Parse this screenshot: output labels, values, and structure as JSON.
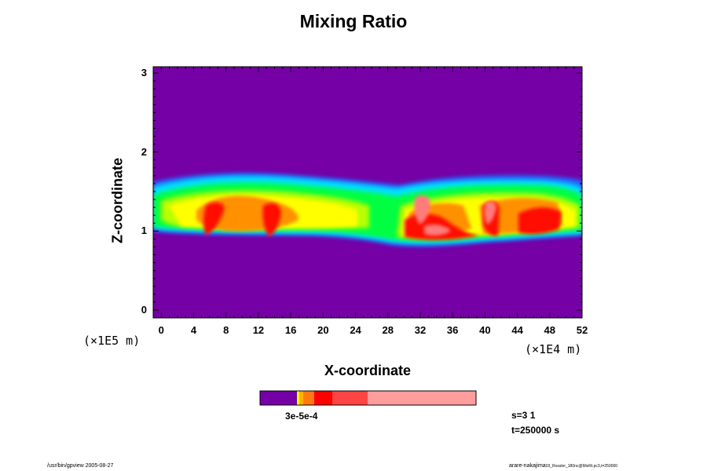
{
  "chart_data": {
    "type": "heatmap",
    "title": "Mixing Ratio",
    "xlabel": "X-coordinate",
    "ylabel": "Z-coordinate",
    "x_unit": "(×1E4 m)",
    "y_unit": "(×1E5 m)",
    "xlim": [
      -1,
      52
    ],
    "ylim": [
      -0.1,
      3.08
    ],
    "x_ticks": [
      "0",
      "4",
      "8",
      "12",
      "16",
      "20",
      "24",
      "28",
      "32",
      "36",
      "40",
      "44",
      "48",
      "52"
    ],
    "y_ticks": [
      "0",
      "1",
      "2",
      "3"
    ],
    "background_color": "#7400a6",
    "colorbar": {
      "colors": [
        "#7400a6",
        "#ffff00",
        "#ffb000",
        "#ff7a10",
        "#ff0000",
        "#ff4444",
        "#ff9c9c"
      ],
      "label": "3e-5e-4"
    },
    "info": [
      "s=3 1",
      "t=250000 s"
    ]
  },
  "footer": {
    "left": "/usr/bin/gpview 2005-08-27",
    "right_main": "arare-nakajima",
    "right_sub": "03_Rossler_180nc@MixRt.pc3,t=250000"
  }
}
